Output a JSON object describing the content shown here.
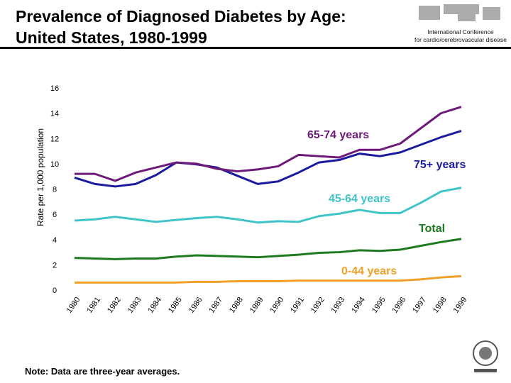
{
  "header": {
    "title_line1": "Prevalence of Diagnosed Diabetes by Age:",
    "title_line2": "United States, 1980-1999",
    "conference_line1": "International Conference",
    "conference_line2": "for cardio/cerebrovascular disease"
  },
  "footer": {
    "note": "Note: Data are three-year averages."
  },
  "chart_data": {
    "type": "line",
    "title": "Prevalence of Diagnosed Diabetes by Age: United States, 1980-1999",
    "xlabel": "",
    "ylabel": "Rate per 1,000 population",
    "ylim": [
      0,
      16
    ],
    "yticks": [
      0,
      2,
      4,
      6,
      8,
      10,
      12,
      14,
      16
    ],
    "x": [
      "1980",
      "1981",
      "1982",
      "1983",
      "1984",
      "1985",
      "1986",
      "1987",
      "1988",
      "1989",
      "1990",
      "1991",
      "1992",
      "1993",
      "1994",
      "1995",
      "1996",
      "1997",
      "1998",
      "1999"
    ],
    "grid": false,
    "series": [
      {
        "name": "65-74 years",
        "color": "#6e1a78",
        "values": [
          9.2,
          9.2,
          8.65,
          9.3,
          9.7,
          10.1,
          10.0,
          9.6,
          9.4,
          9.55,
          9.8,
          10.7,
          10.6,
          10.5,
          11.1,
          11.1,
          11.6,
          12.8,
          14.0,
          14.5
        ]
      },
      {
        "name": "75+ years",
        "color": "#1a1aa0",
        "values": [
          8.9,
          8.4,
          8.2,
          8.4,
          9.1,
          10.1,
          9.95,
          9.7,
          9.05,
          8.4,
          8.6,
          9.3,
          10.1,
          10.3,
          10.8,
          10.6,
          10.9,
          11.5,
          12.1,
          12.6
        ]
      },
      {
        "name": "45-64 years",
        "color": "#40c4c8",
        "values": [
          5.5,
          5.6,
          5.8,
          5.6,
          5.4,
          5.55,
          5.7,
          5.8,
          5.6,
          5.35,
          5.45,
          5.4,
          5.85,
          6.05,
          6.35,
          6.1,
          6.1,
          6.9,
          7.8,
          8.1
        ]
      },
      {
        "name": "Total",
        "color": "#1e7a1e",
        "values": [
          2.55,
          2.5,
          2.45,
          2.5,
          2.5,
          2.65,
          2.75,
          2.7,
          2.65,
          2.6,
          2.7,
          2.8,
          2.95,
          3.0,
          3.15,
          3.1,
          3.2,
          3.5,
          3.8,
          4.05
        ]
      },
      {
        "name": "0-44 years",
        "color": "#f0a028",
        "values": [
          0.6,
          0.6,
          0.6,
          0.6,
          0.6,
          0.6,
          0.65,
          0.65,
          0.7,
          0.7,
          0.7,
          0.75,
          0.75,
          0.75,
          0.75,
          0.75,
          0.75,
          0.85,
          1.0,
          1.1
        ]
      }
    ]
  }
}
